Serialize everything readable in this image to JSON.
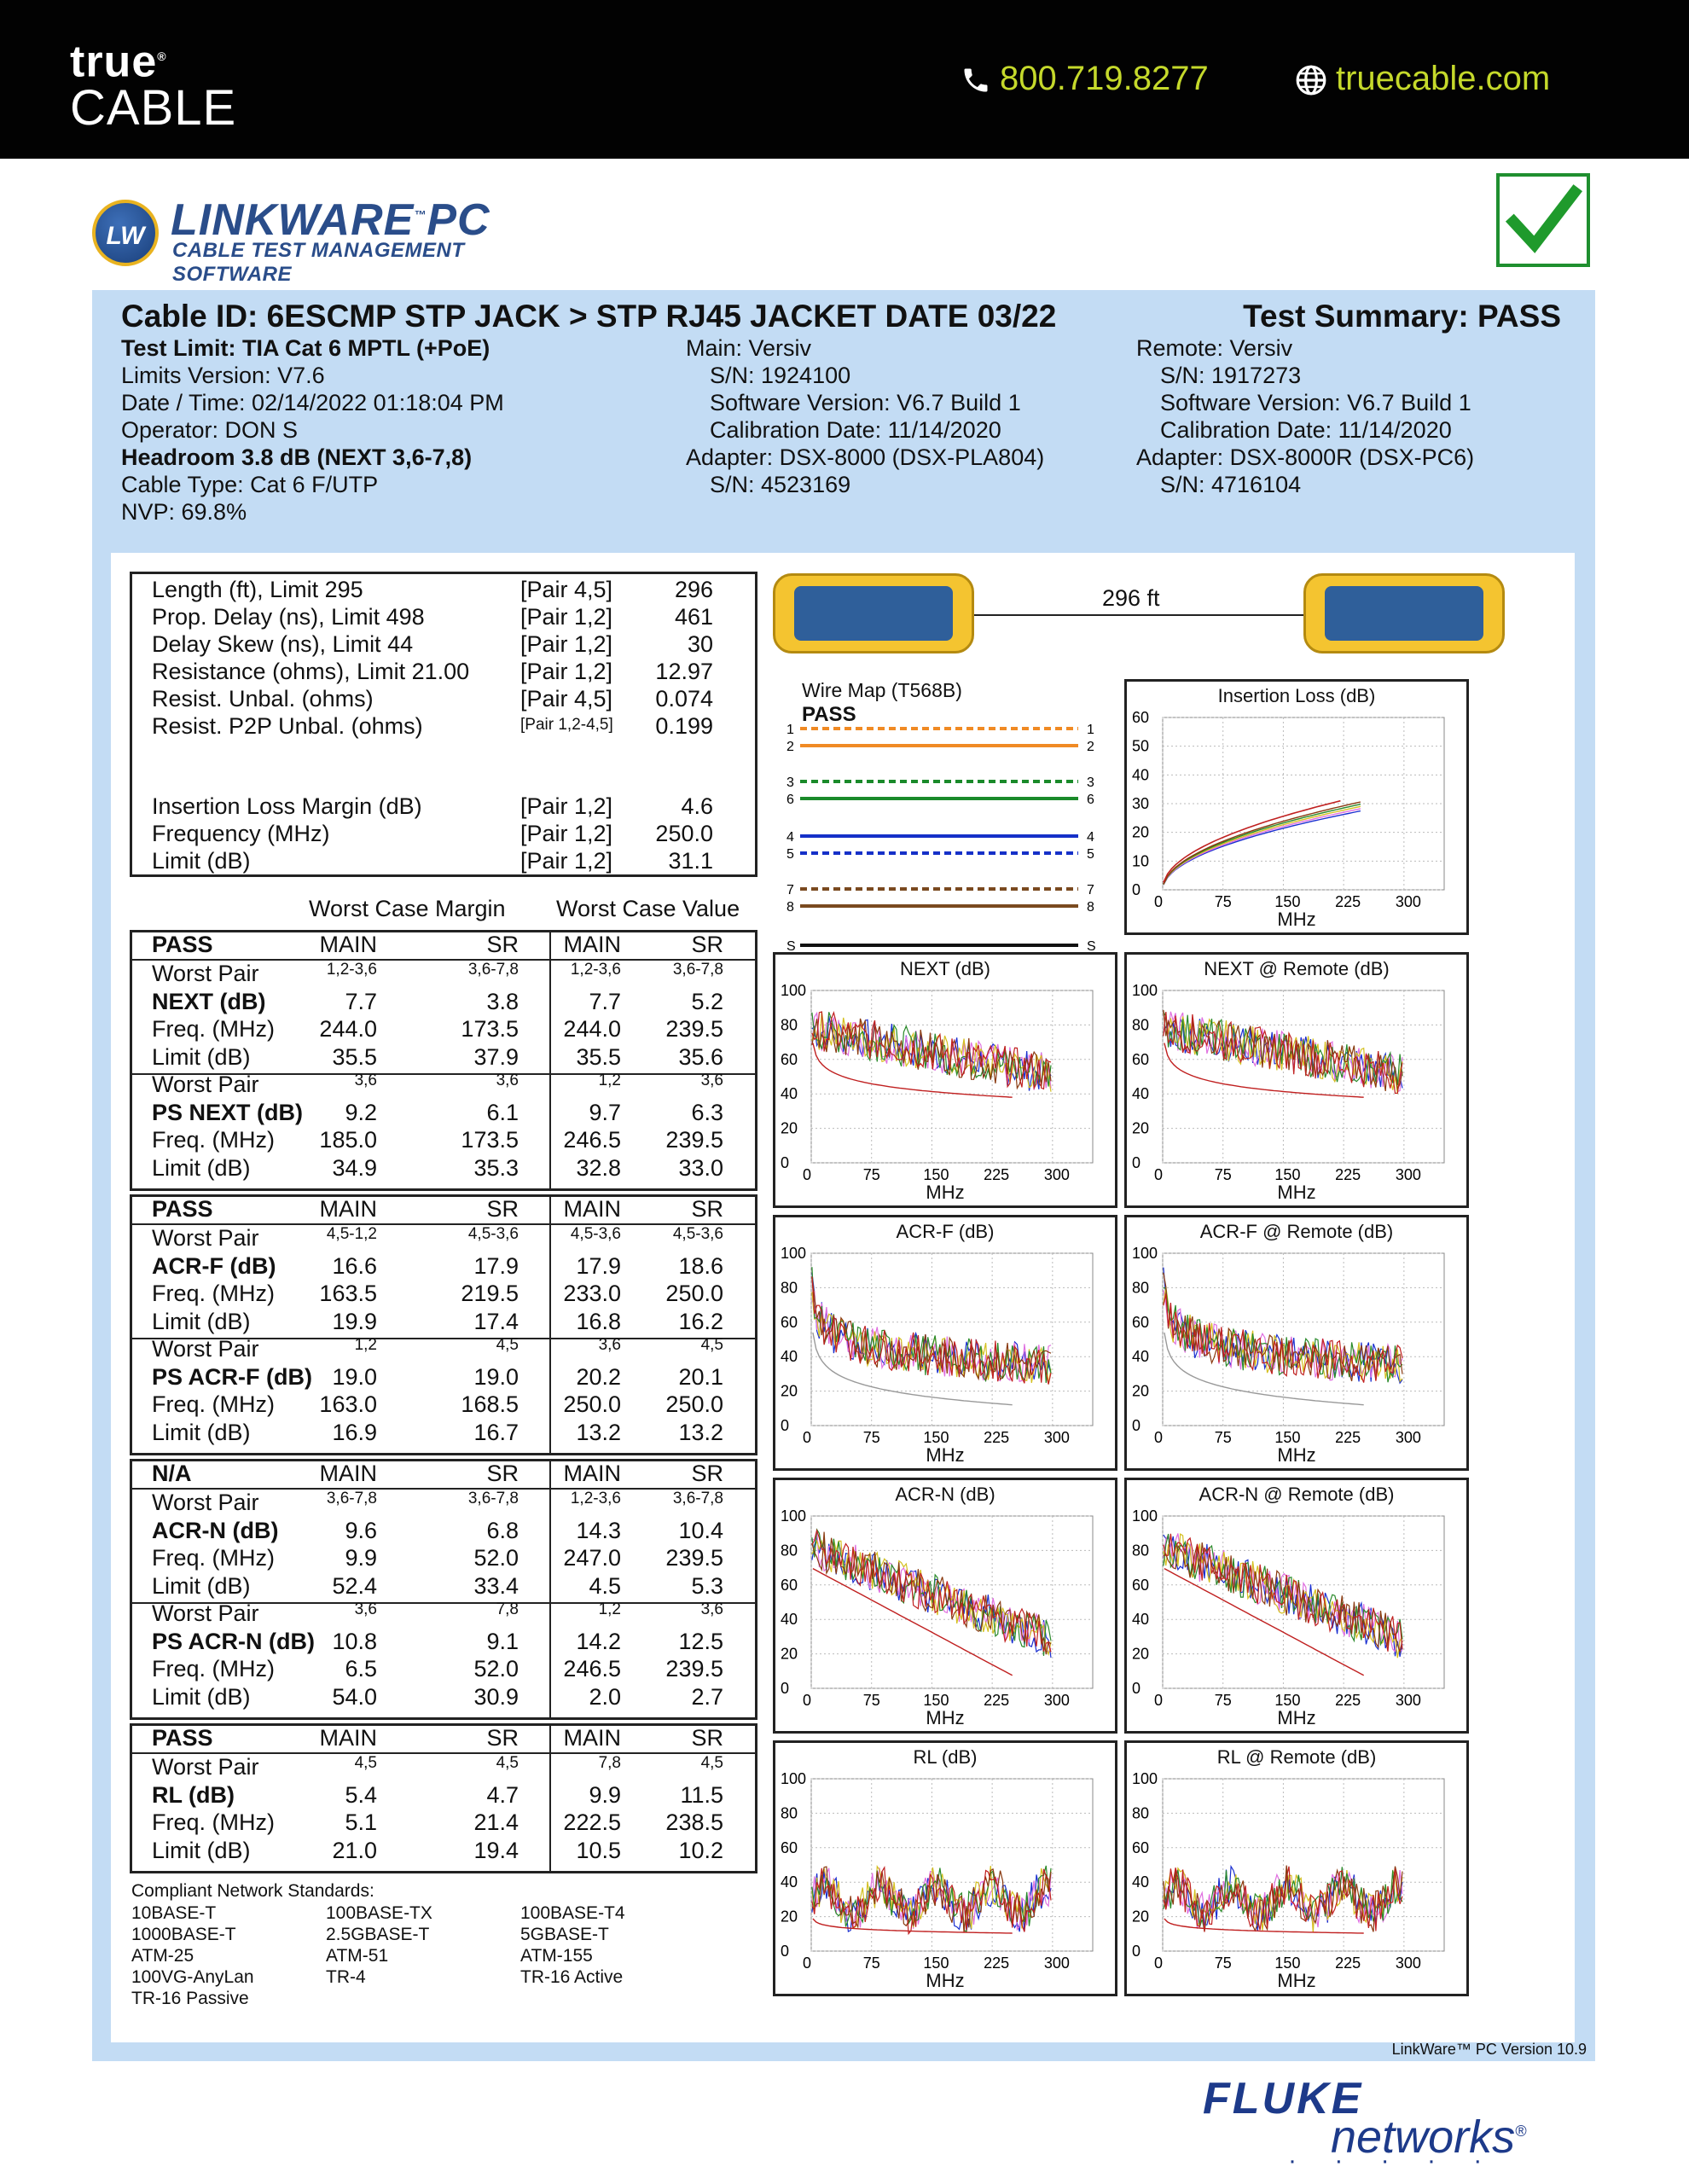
{
  "topbar": {
    "brand_line1": "true",
    "brand_line2": "CABLE",
    "phone": "800.719.8277",
    "website": "truecable.com",
    "phone_icon": "phone-icon",
    "web_icon": "globe-icon"
  },
  "logo": {
    "badge": "LW",
    "title": "LINKWARE",
    "tm": "™",
    "title2": "PC",
    "subtitle": "CABLE TEST MANAGEMENT SOFTWARE"
  },
  "header": {
    "cable_id": "Cable ID: 6ESCMP STP JACK > STP RJ45 JACKET DATE 03/22",
    "summary": "Test Summary: PASS",
    "left": [
      "Test Limit: TIA Cat 6 MPTL (+PoE)",
      "Limits Version: V7.6",
      "Date / Time: 02/14/2022  01:18:04 PM",
      "Operator: DON S",
      "Headroom 3.8 dB (NEXT 3,6-7,8)",
      "Cable Type: Cat 6 F/UTP",
      "NVP: 69.8%"
    ],
    "main": [
      "Main: Versiv",
      "S/N: 1924100",
      "Software Version: V6.7 Build 1",
      "Calibration Date: 11/14/2020",
      "Adapter: DSX-8000 (DSX-PLA804)",
      "S/N: 4523169"
    ],
    "remote": [
      "Remote: Versiv",
      "S/N: 1917273",
      "Software Version: V6.7 Build 1",
      "Calibration Date: 11/14/2020",
      "Adapter: DSX-8000R (DSX-PC6)",
      "S/N: 4716104"
    ]
  },
  "summary_table": {
    "rows": [
      {
        "label": "Length (ft), Limit 295",
        "pair": "[Pair 4,5]",
        "value": "296"
      },
      {
        "label": "Prop. Delay (ns), Limit 498",
        "pair": "[Pair 1,2]",
        "value": "461"
      },
      {
        "label": "Delay Skew (ns), Limit 44",
        "pair": "[Pair 1,2]",
        "value": "30"
      },
      {
        "label": "Resistance (ohms), Limit 21.00",
        "pair": "[Pair 1,2]",
        "value": "12.97"
      },
      {
        "label": "Resist. Unbal. (ohms)",
        "pair": "[Pair 4,5]",
        "value": "0.074"
      },
      {
        "label": "Resist. P2P Unbal. (ohms)",
        "pair": "[Pair 1,2-4,5]",
        "value": "0.199"
      }
    ],
    "il_rows": [
      {
        "label": "Insertion Loss Margin (dB)",
        "pair": "[Pair 1,2]",
        "value": "4.6"
      },
      {
        "label": "Frequency (MHz)",
        "pair": "[Pair 1,2]",
        "value": "250.0"
      },
      {
        "label": "Limit (dB)",
        "pair": "[Pair 1,2]",
        "value": "31.1"
      }
    ]
  },
  "worst_case": {
    "margin": "Worst Case Margin",
    "value": "Worst Case Value"
  },
  "blocks": [
    {
      "status": "PASS",
      "sections": [
        {
          "rows": [
            [
              "Worst Pair",
              "1,2-3,6",
              "3,6-7,8",
              "1,2-3,6",
              "3,6-7,8"
            ],
            [
              "NEXT (dB)",
              "7.7",
              "3.8",
              "7.7",
              "5.2"
            ],
            [
              "Freq. (MHz)",
              "244.0",
              "173.5",
              "244.0",
              "239.5"
            ],
            [
              "Limit (dB)",
              "35.5",
              "37.9",
              "35.5",
              "35.6"
            ]
          ]
        },
        {
          "rows": [
            [
              "Worst Pair",
              "3,6",
              "3,6",
              "1,2",
              "3,6"
            ],
            [
              "PS NEXT (dB)",
              "9.2",
              "6.1",
              "9.7",
              "6.3"
            ],
            [
              "Freq. (MHz)",
              "185.0",
              "173.5",
              "246.5",
              "239.5"
            ],
            [
              "Limit (dB)",
              "34.9",
              "35.3",
              "32.8",
              "33.0"
            ]
          ]
        }
      ]
    },
    {
      "status": "PASS",
      "sections": [
        {
          "rows": [
            [
              "Worst Pair",
              "4,5-1,2",
              "4,5-3,6",
              "4,5-3,6",
              "4,5-3,6"
            ],
            [
              "ACR-F (dB)",
              "16.6",
              "17.9",
              "17.9",
              "18.6"
            ],
            [
              "Freq. (MHz)",
              "163.5",
              "219.5",
              "233.0",
              "250.0"
            ],
            [
              "Limit (dB)",
              "19.9",
              "17.4",
              "16.8",
              "16.2"
            ]
          ]
        },
        {
          "rows": [
            [
              "Worst Pair",
              "1,2",
              "4,5",
              "3,6",
              "4,5"
            ],
            [
              "PS ACR-F (dB)",
              "19.0",
              "19.0",
              "20.2",
              "20.1"
            ],
            [
              "Freq. (MHz)",
              "163.0",
              "168.5",
              "250.0",
              "250.0"
            ],
            [
              "Limit (dB)",
              "16.9",
              "16.7",
              "13.2",
              "13.2"
            ]
          ]
        }
      ]
    },
    {
      "status": "N/A",
      "sections": [
        {
          "rows": [
            [
              "Worst Pair",
              "3,6-7,8",
              "3,6-7,8",
              "1,2-3,6",
              "3,6-7,8"
            ],
            [
              "ACR-N (dB)",
              "9.6",
              "6.8",
              "14.3",
              "10.4"
            ],
            [
              "Freq. (MHz)",
              "9.9",
              "52.0",
              "247.0",
              "239.5"
            ],
            [
              "Limit (dB)",
              "52.4",
              "33.4",
              "4.5",
              "5.3"
            ]
          ]
        },
        {
          "rows": [
            [
              "Worst Pair",
              "3,6",
              "7,8",
              "1,2",
              "3,6"
            ],
            [
              "PS ACR-N (dB)",
              "10.8",
              "9.1",
              "14.2",
              "12.5"
            ],
            [
              "Freq. (MHz)",
              "6.5",
              "52.0",
              "246.5",
              "239.5"
            ],
            [
              "Limit (dB)",
              "54.0",
              "30.9",
              "2.0",
              "2.7"
            ]
          ]
        }
      ]
    },
    {
      "status": "PASS",
      "sections": [
        {
          "rows": [
            [
              "Worst Pair",
              "4,5",
              "4,5",
              "7,8",
              "4,5"
            ],
            [
              "RL (dB)",
              "5.4",
              "4.7",
              "9.9",
              "11.5"
            ],
            [
              "Freq. (MHz)",
              "5.1",
              "21.4",
              "222.5",
              "238.5"
            ],
            [
              "Limit (dB)",
              "21.0",
              "19.4",
              "10.5",
              "10.2"
            ]
          ]
        }
      ]
    }
  ],
  "col_headers": [
    "MAIN",
    "SR",
    "MAIN",
    "SR"
  ],
  "standards": {
    "title": "Compliant Network Standards:",
    "items": [
      "10BASE-T",
      "100BASE-TX",
      "100BASE-T4",
      "1000BASE-T",
      "2.5GBASE-T",
      "5GBASE-T",
      "ATM-25",
      "ATM-51",
      "ATM-155",
      "100VG-AnyLan",
      "TR-4",
      "TR-16 Active",
      "TR-16 Passive"
    ]
  },
  "wiremap": {
    "length": "296 ft",
    "title": "Wire Map (T568B)",
    "status": "PASS",
    "pins_left": [
      "1",
      "2",
      "3",
      "6",
      "4",
      "5",
      "7",
      "8",
      "S"
    ],
    "pins_right": [
      "1",
      "2",
      "3",
      "6",
      "4",
      "5",
      "7",
      "8",
      "S"
    ]
  },
  "charts": [
    {
      "title": "Insertion Loss (dB)",
      "xlabel": "MHz",
      "y_ticks": [
        "60",
        "50",
        "40",
        "30",
        "20",
        "10",
        "0"
      ],
      "x_ticks": [
        "0",
        "75",
        "150",
        "225",
        "300"
      ],
      "kind": "il"
    },
    {
      "title": "NEXT (dB)",
      "xlabel": "MHz",
      "y_ticks": [
        "100",
        "80",
        "60",
        "40",
        "20",
        "0"
      ],
      "x_ticks": [
        "0",
        "75",
        "150",
        "225",
        "300"
      ],
      "kind": "next"
    },
    {
      "title": "NEXT @ Remote (dB)",
      "xlabel": "MHz",
      "y_ticks": [
        "100",
        "80",
        "60",
        "40",
        "20",
        "0"
      ],
      "x_ticks": [
        "0",
        "75",
        "150",
        "225",
        "300"
      ],
      "kind": "next"
    },
    {
      "title": "ACR-F (dB)",
      "xlabel": "MHz",
      "y_ticks": [
        "100",
        "80",
        "60",
        "40",
        "20",
        "0"
      ],
      "x_ticks": [
        "0",
        "75",
        "150",
        "225",
        "300"
      ],
      "kind": "acrf"
    },
    {
      "title": "ACR-F @ Remote (dB)",
      "xlabel": "MHz",
      "y_ticks": [
        "100",
        "80",
        "60",
        "40",
        "20",
        "0"
      ],
      "x_ticks": [
        "0",
        "75",
        "150",
        "225",
        "300"
      ],
      "kind": "acrf"
    },
    {
      "title": "ACR-N (dB)",
      "xlabel": "MHz",
      "y_ticks": [
        "100",
        "80",
        "60",
        "40",
        "20",
        "0"
      ],
      "x_ticks": [
        "0",
        "75",
        "150",
        "225",
        "300"
      ],
      "kind": "acrn"
    },
    {
      "title": "ACR-N @ Remote (dB)",
      "xlabel": "MHz",
      "y_ticks": [
        "100",
        "80",
        "60",
        "40",
        "20",
        "0"
      ],
      "x_ticks": [
        "0",
        "75",
        "150",
        "225",
        "300"
      ],
      "kind": "acrn"
    },
    {
      "title": "RL (dB)",
      "xlabel": "MHz",
      "y_ticks": [
        "100",
        "80",
        "60",
        "40",
        "20",
        "0"
      ],
      "x_ticks": [
        "0",
        "75",
        "150",
        "225",
        "300"
      ],
      "kind": "rl"
    },
    {
      "title": "RL @ Remote (dB)",
      "xlabel": "MHz",
      "y_ticks": [
        "100",
        "80",
        "60",
        "40",
        "20",
        "0"
      ],
      "x_ticks": [
        "0",
        "75",
        "150",
        "225",
        "300"
      ],
      "kind": "rl"
    }
  ],
  "footer": {
    "version": "LinkWare™ PC Version 10.9",
    "fluke1": "FLUKE",
    "fluke2": "networks",
    "reg": "®"
  },
  "colors": {
    "topbar": "#020202",
    "accent": "#c5d92b",
    "panel": "#c3dcf4",
    "pass_check": "#1f8f2f",
    "logo_blue": "#2a4d8a"
  }
}
